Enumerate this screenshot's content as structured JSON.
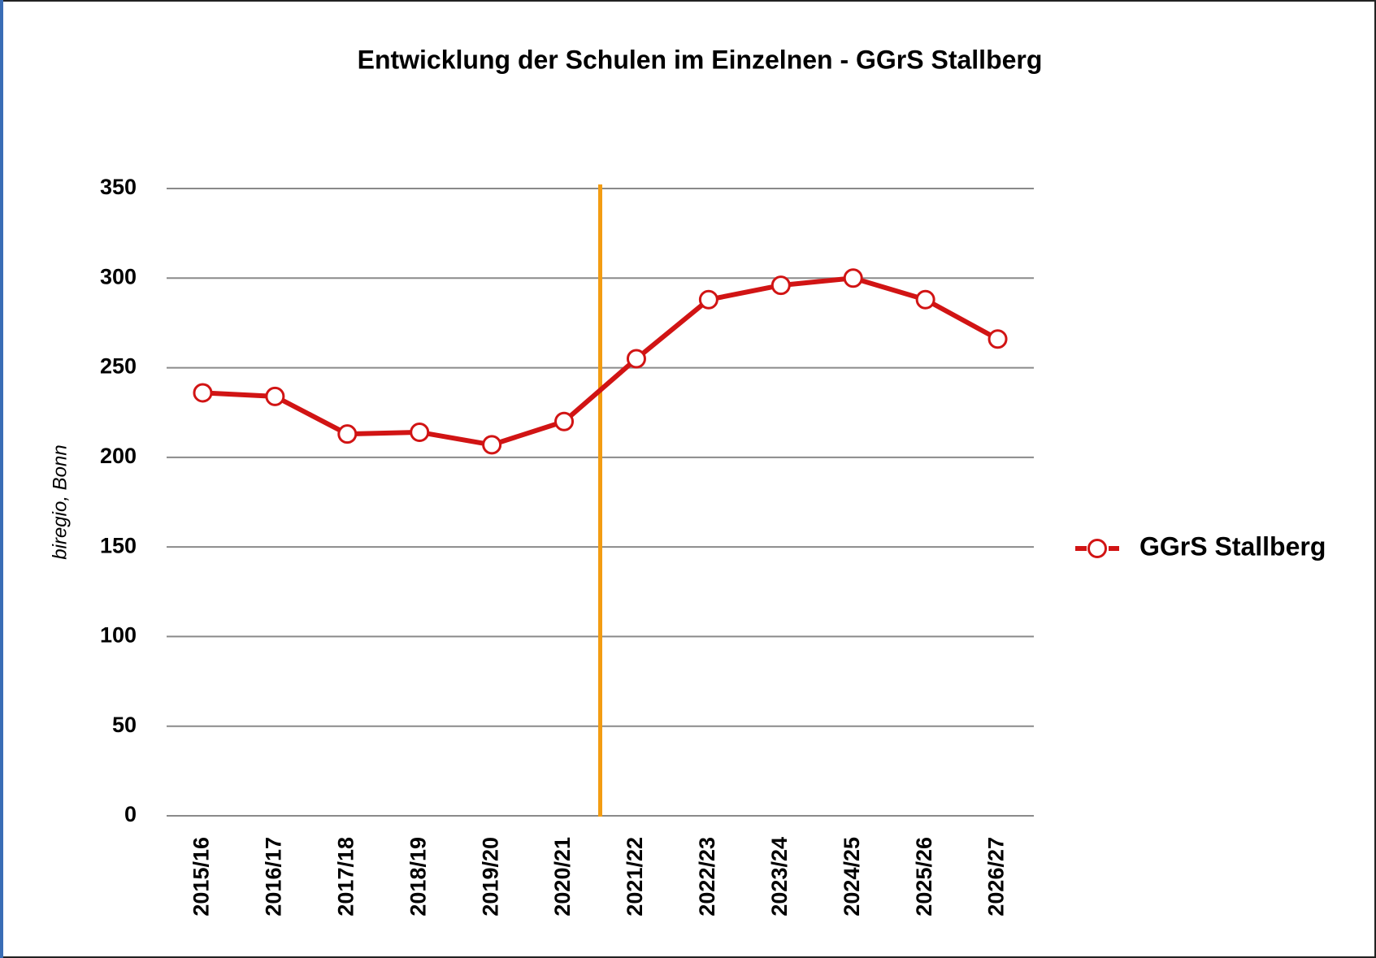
{
  "chart_data": {
    "type": "line",
    "title": "Entwicklung der Schulen im Einzelnen - GGrS Stallberg",
    "y_label": "biregio, Bonn",
    "categories": [
      "2015/16",
      "2016/17",
      "2017/18",
      "2018/19",
      "2019/20",
      "2020/21",
      "2021/22",
      "2022/23",
      "2023/24",
      "2024/25",
      "2025/26",
      "2026/27"
    ],
    "series": [
      {
        "name": "GGrS Stallberg",
        "color": "#d11414",
        "values": [
          236,
          234,
          213,
          214,
          207,
          220,
          255,
          288,
          296,
          300,
          288,
          266
        ]
      }
    ],
    "ylim": [
      0,
      350
    ],
    "yticks": [
      0,
      50,
      100,
      150,
      200,
      250,
      300,
      350
    ],
    "grid": true,
    "legend": "right"
  }
}
